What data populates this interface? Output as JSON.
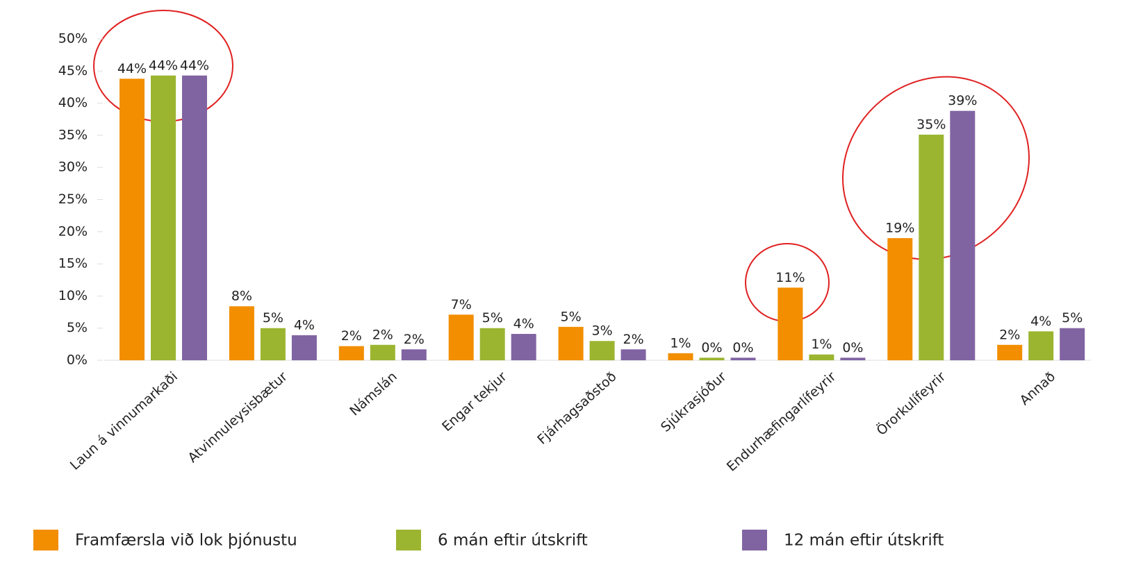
{
  "chart_data": {
    "type": "bar",
    "categories": [
      "Laun á vinnumarkaði",
      "Atvinnuleysisbætur",
      "Námslán",
      "Engar tekjur",
      "Fjárhagsaðstoð",
      "Sjúkrasjóður",
      "Endurhæfingarlífeyrir",
      "Örorkulífeyrir",
      "Annað"
    ],
    "series": [
      {
        "name": "Framfærsla við lok þjónustu",
        "color": "#f28e00",
        "values": [
          43.8,
          8.4,
          2.2,
          7.1,
          5.2,
          1.1,
          11.3,
          19.0,
          2.4
        ],
        "value_labels": [
          "44%",
          "8%",
          "2%",
          "7%",
          "5%",
          "1%",
          "11%",
          "19%",
          "2%"
        ]
      },
      {
        "name": "6 mán eftir útskrift",
        "color": "#9bb530",
        "values": [
          44.3,
          5.0,
          2.4,
          5.0,
          3.0,
          0.4,
          0.9,
          35.1,
          4.5
        ],
        "value_labels": [
          "44%",
          "5%",
          "2%",
          "5%",
          "3%",
          "0%",
          "1%",
          "35%",
          "4%"
        ]
      },
      {
        "name": "12 mán eftir útskrift",
        "color": "#8064a2",
        "values": [
          44.3,
          3.9,
          1.7,
          4.1,
          1.7,
          0.4,
          0.4,
          38.8,
          5.0
        ],
        "value_labels": [
          "44%",
          "4%",
          "2%",
          "4%",
          "2%",
          "0%",
          "0%",
          "39%",
          "5%"
        ]
      }
    ],
    "ylim": [
      0,
      50
    ],
    "yticks": [
      {
        "value": 0,
        "label": "0%"
      },
      {
        "value": 5,
        "label": "5%"
      },
      {
        "value": 10,
        "label": "10%"
      },
      {
        "value": 15,
        "label": "15%"
      },
      {
        "value": 20,
        "label": "20%"
      },
      {
        "value": 25,
        "label": "25%"
      },
      {
        "value": 30,
        "label": "30%"
      },
      {
        "value": 35,
        "label": "35%"
      },
      {
        "value": 40,
        "label": "40%"
      },
      {
        "value": 45,
        "label": "45%"
      },
      {
        "value": 50,
        "label": "50%"
      }
    ],
    "legend": "bottom"
  }
}
